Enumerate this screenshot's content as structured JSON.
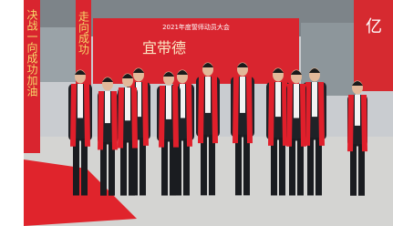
{
  "backdrop": {
    "title": "2021年度誓师动员大会",
    "calligraphy": "宜带德"
  },
  "banners": {
    "left": "决战一向成功加油",
    "middle": "走向成功",
    "right": "亿"
  }
}
